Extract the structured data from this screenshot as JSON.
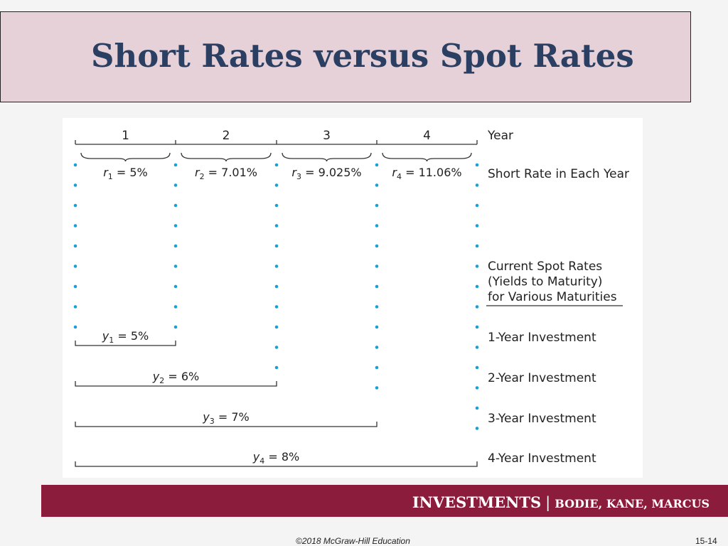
{
  "slide": {
    "title": "Short Rates versus Spot Rates",
    "footer": {
      "brand": "INVESTMENTS",
      "separator": "|",
      "authors": "BODIE, KANE, MARCUS"
    },
    "copyright": "©2018 McGraw-Hill Education",
    "slide_number": "15-14"
  },
  "diagram": {
    "years": [
      "1",
      "2",
      "3",
      "4"
    ],
    "year_label": "Year",
    "short_rate_label": "Short Rate in Each Year",
    "short_rates": [
      {
        "var": "r",
        "sub": "1",
        "value": "5%"
      },
      {
        "var": "r",
        "sub": "2",
        "value": "7.01%"
      },
      {
        "var": "r",
        "sub": "3",
        "value": "9.025%"
      },
      {
        "var": "r",
        "sub": "4",
        "value": "11.06%"
      }
    ],
    "spot_rates_heading": [
      "Current Spot Rates",
      "(Yields to Maturity)",
      "for Various Maturities"
    ],
    "spot_rates": [
      {
        "var": "y",
        "sub": "1",
        "value": "5%",
        "label": "1-Year Investment"
      },
      {
        "var": "y",
        "sub": "2",
        "value": "6%",
        "label": "2-Year Investment"
      },
      {
        "var": "y",
        "sub": "3",
        "value": "7%",
        "label": "3-Year Investment"
      },
      {
        "var": "y",
        "sub": "4",
        "value": "8%",
        "label": "4-Year Investment"
      }
    ],
    "colors": {
      "line": "#333333",
      "dot": "#1aa0d8"
    }
  }
}
